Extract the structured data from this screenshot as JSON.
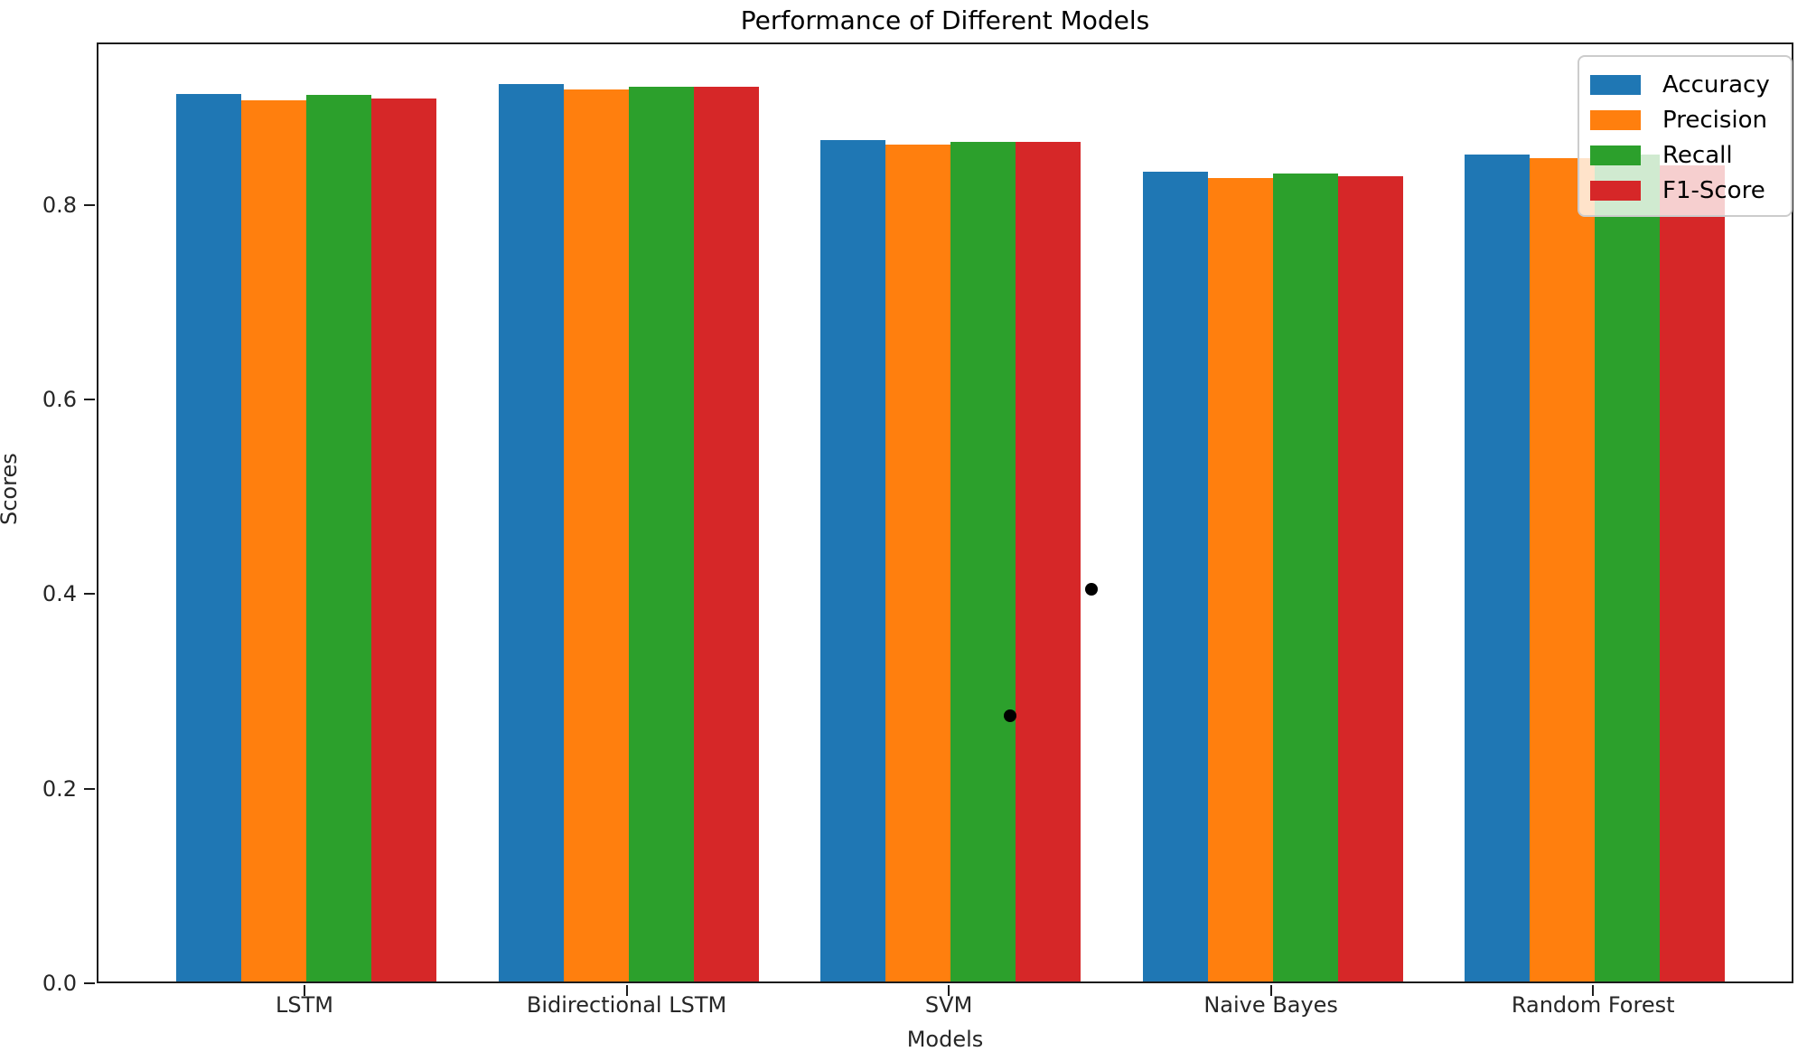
{
  "chart_data": {
    "type": "bar",
    "title": "Performance of Different Models",
    "xlabel": "Models",
    "ylabel": "Scores",
    "categories": [
      "LSTM",
      "Bidirectional LSTM",
      "SVM",
      "Naive Bayes",
      "Random Forest"
    ],
    "series": [
      {
        "name": "Accuracy",
        "color": "#1f77b4",
        "values": [
          0.912,
          0.922,
          0.865,
          0.832,
          0.85
        ]
      },
      {
        "name": "Precision",
        "color": "#ff7f0e",
        "values": [
          0.906,
          0.917,
          0.86,
          0.826,
          0.846
        ]
      },
      {
        "name": "Recall",
        "color": "#2ca02c",
        "values": [
          0.911,
          0.92,
          0.863,
          0.83,
          0.85
        ]
      },
      {
        "name": "F1-Score",
        "color": "#d62728",
        "values": [
          0.908,
          0.92,
          0.863,
          0.828,
          0.839
        ]
      }
    ],
    "yticks": [
      {
        "label": "0.0",
        "value": 0.0
      },
      {
        "label": "0.2",
        "value": 0.2
      },
      {
        "label": "0.4",
        "value": 0.4
      },
      {
        "label": "0.6",
        "value": 0.6
      },
      {
        "label": "0.8",
        "value": 0.8
      }
    ],
    "ylim": [
      0,
      0.967
    ],
    "grid": false,
    "legend_position": "upper right",
    "outlier_points": [
      {
        "x_index": 2.185,
        "y": 0.277
      },
      {
        "x_index": 2.437,
        "y": 0.407
      }
    ]
  }
}
